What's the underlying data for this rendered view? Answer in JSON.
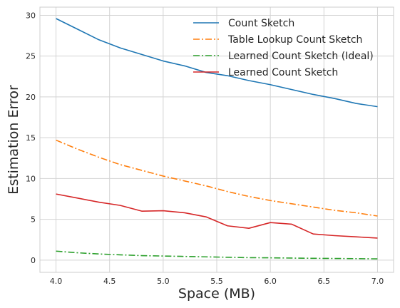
{
  "chart_data": {
    "type": "line",
    "title": "",
    "xlabel": "Space (MB)",
    "ylabel": "Estimation  Error",
    "xlim": [
      3.85,
      7.15
    ],
    "ylim": [
      -1.5,
      31
    ],
    "xticks": [
      4.0,
      4.5,
      5.0,
      5.5,
      6.0,
      6.5,
      7.0
    ],
    "xtick_labels": [
      "4.0",
      "4.5",
      "5.0",
      "5.5",
      "6.0",
      "6.5",
      "7.0"
    ],
    "yticks": [
      0,
      5,
      10,
      15,
      20,
      25,
      30
    ],
    "ytick_labels": [
      "0",
      "5",
      "10",
      "15",
      "20",
      "25",
      "30"
    ],
    "grid": true,
    "legend_position": "top-right",
    "x": [
      4.0,
      4.2,
      4.4,
      4.6,
      4.8,
      5.0,
      5.2,
      5.4,
      5.6,
      5.8,
      6.0,
      6.2,
      6.4,
      6.6,
      6.8,
      7.0
    ],
    "series": [
      {
        "name": "Count Sketch",
        "color": "#1f77b4",
        "dash": "solid",
        "values": [
          29.6,
          28.3,
          27.0,
          26.0,
          25.2,
          24.4,
          23.8,
          23.0,
          22.6,
          22.0,
          21.5,
          20.9,
          20.3,
          19.8,
          19.2,
          18.8
        ]
      },
      {
        "name": "Table Lookup Count Sketch",
        "color": "#ff7f0e",
        "dash": "dashdot",
        "values": [
          14.7,
          13.6,
          12.6,
          11.7,
          11.0,
          10.3,
          9.7,
          9.1,
          8.4,
          7.8,
          7.3,
          6.9,
          6.5,
          6.1,
          5.8,
          5.4
        ]
      },
      {
        "name": "Learned Count Sketch (Ideal)",
        "color": "#2ca02c",
        "dash": "dashdot",
        "values": [
          1.1,
          0.9,
          0.75,
          0.65,
          0.55,
          0.5,
          0.45,
          0.4,
          0.35,
          0.3,
          0.28,
          0.25,
          0.22,
          0.2,
          0.18,
          0.15
        ]
      },
      {
        "name": "Learned Count Sketch",
        "color": "#d62728",
        "dash": "solid",
        "values": [
          8.1,
          7.6,
          7.1,
          6.7,
          6.0,
          6.05,
          5.8,
          5.3,
          4.2,
          3.9,
          4.6,
          4.4,
          3.2,
          3.0,
          2.85,
          2.7
        ]
      }
    ]
  }
}
